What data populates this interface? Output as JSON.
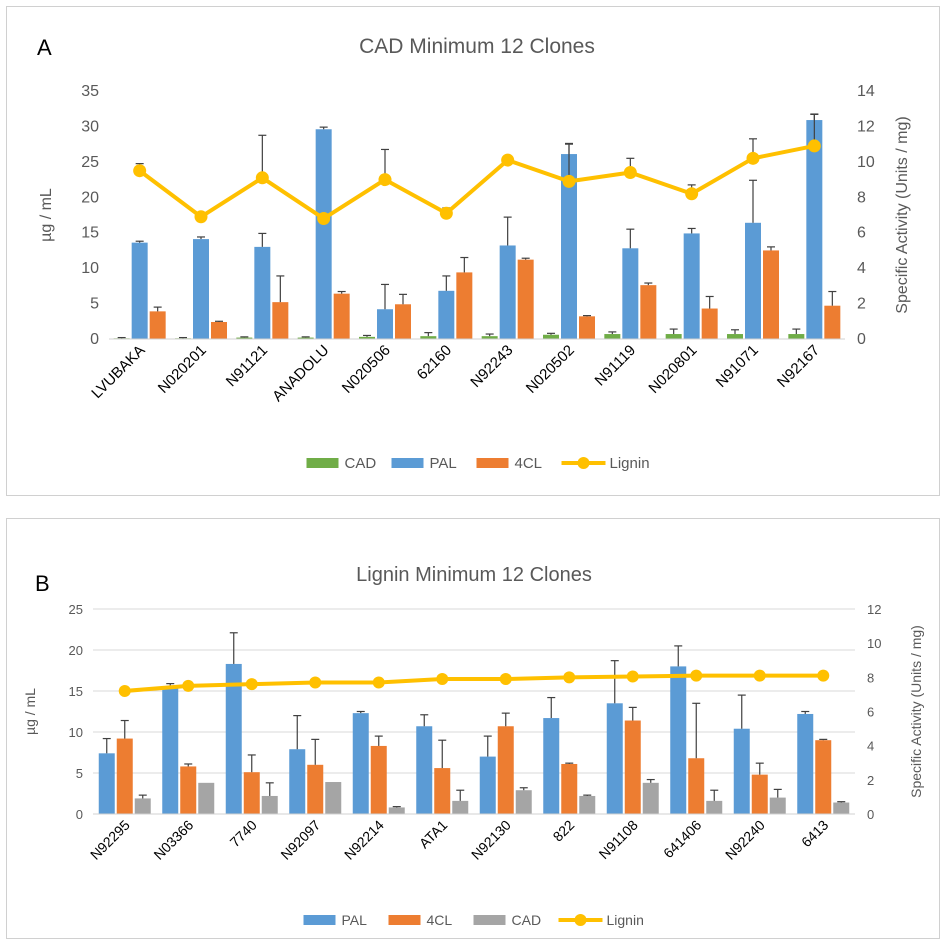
{
  "colors": {
    "CAD_A": "#70AD47",
    "PAL": "#5B9BD5",
    "4CL": "#ED7D31",
    "CAD_B": "#A5A5A5",
    "Lignin": "#FFC000",
    "axis_text": "#595959",
    "gridline": "#d9d9d9"
  },
  "chart_data": [
    {
      "type": "bar",
      "panel_label": "A",
      "title": "CAD Minimum 12 Clones",
      "ylabel": "µg / mL",
      "y2label": "Specific Activity (Units / mg)",
      "ylim": [
        0,
        35
      ],
      "y2lim": [
        0,
        14
      ],
      "yticks": [
        "0",
        "5",
        "10",
        "15",
        "20",
        "25",
        "30",
        "35"
      ],
      "y2ticks": [
        "0",
        "2",
        "4",
        "6",
        "8",
        "10",
        "12",
        "14"
      ],
      "grid": false,
      "legend_position": "bottom",
      "categories": [
        "LVUBAKA",
        "N020201",
        "N91121",
        "ANADOLU",
        "N020506",
        "62160",
        "N92243",
        "N020502",
        "N91119",
        "N020801",
        "N91071",
        "N92167"
      ],
      "series": [
        {
          "name": "CAD",
          "kind": "bar",
          "axis": "left",
          "color_key": "CAD_A",
          "values": [
            0.1,
            0.1,
            0.2,
            0.2,
            0.3,
            0.4,
            0.4,
            0.6,
            0.7,
            0.7,
            0.7,
            0.7
          ],
          "error": [
            0.1,
            0.1,
            0.1,
            0.1,
            0.2,
            0.5,
            0.3,
            0.2,
            0.3,
            0.7,
            0.6,
            0.7
          ]
        },
        {
          "name": "PAL",
          "kind": "bar",
          "axis": "left",
          "color_key": "PAL",
          "values": [
            13.6,
            14.1,
            13.0,
            29.6,
            4.2,
            6.8,
            13.2,
            26.1,
            12.8,
            14.9,
            16.4,
            30.9
          ],
          "error": [
            0.2,
            0.3,
            1.9,
            0.3,
            3.5,
            2.1,
            4.0,
            1.5,
            2.7,
            0.7,
            6.0,
            0.8
          ]
        },
        {
          "name": "4CL",
          "kind": "bar",
          "axis": "left",
          "color_key": "4CL",
          "values": [
            3.9,
            2.4,
            5.2,
            6.4,
            4.9,
            9.4,
            11.2,
            3.2,
            7.6,
            4.3,
            12.5,
            4.7
          ],
          "error": [
            0.6,
            0.1,
            3.7,
            0.3,
            1.4,
            2.1,
            0.2,
            0.1,
            0.3,
            1.7,
            0.5,
            2.0
          ]
        },
        {
          "name": "Lignin",
          "kind": "line",
          "axis": "right",
          "color_key": "Lignin",
          "values": [
            9.5,
            6.9,
            9.1,
            6.8,
            9.0,
            7.1,
            10.1,
            8.9,
            9.4,
            8.2,
            10.2,
            10.9
          ],
          "error": [
            0.4,
            0.0,
            2.4,
            0.0,
            1.7,
            0.3,
            0.0,
            2.1,
            0.8,
            0.5,
            1.1,
            1.8
          ]
        }
      ]
    },
    {
      "type": "bar",
      "panel_label": "B",
      "title": "Lignin Minimum 12 Clones",
      "ylabel": "µg / mL",
      "y2label": "Specific Activity (Units / mg)",
      "ylim": [
        0,
        25
      ],
      "y2lim": [
        0,
        12
      ],
      "yticks": [
        "0",
        "5",
        "10",
        "15",
        "20",
        "25"
      ],
      "y2ticks": [
        "0",
        "2",
        "4",
        "6",
        "8",
        "10",
        "12"
      ],
      "grid": true,
      "legend_position": "bottom",
      "categories": [
        "N92295",
        "N03366",
        "7740",
        "N92097",
        "N92214",
        "ATA1",
        "N92130",
        "822",
        "N91108",
        "641406",
        "N92240",
        "6413"
      ],
      "series": [
        {
          "name": "PAL",
          "kind": "bar",
          "axis": "left",
          "color_key": "PAL",
          "values": [
            7.4,
            15.6,
            18.3,
            7.9,
            12.3,
            10.7,
            7.0,
            11.7,
            13.5,
            18.0,
            10.4,
            12.2
          ],
          "error": [
            1.8,
            0.3,
            3.8,
            4.1,
            0.2,
            1.4,
            2.5,
            2.5,
            5.2,
            2.5,
            4.1,
            0.3
          ]
        },
        {
          "name": "4CL",
          "kind": "bar",
          "axis": "left",
          "color_key": "4CL",
          "values": [
            9.2,
            5.8,
            5.1,
            6.0,
            8.3,
            5.6,
            10.7,
            6.1,
            11.4,
            6.8,
            4.8,
            9.0
          ],
          "error": [
            2.2,
            0.3,
            2.1,
            3.1,
            1.2,
            3.4,
            1.6,
            0.1,
            1.6,
            6.7,
            1.4,
            0.1
          ]
        },
        {
          "name": "CAD",
          "kind": "bar",
          "axis": "left",
          "color_key": "CAD_B",
          "values": [
            1.9,
            3.8,
            2.2,
            3.9,
            0.8,
            1.6,
            2.9,
            2.2,
            3.8,
            1.6,
            2.0,
            1.4
          ],
          "error": [
            0.4,
            0.0,
            1.6,
            0.0,
            0.1,
            1.3,
            0.3,
            0.1,
            0.4,
            1.3,
            1.0,
            0.1
          ]
        },
        {
          "name": "Lignin",
          "kind": "line",
          "axis": "right",
          "color_key": "Lignin",
          "values": [
            7.2,
            7.5,
            7.6,
            7.7,
            7.7,
            7.9,
            7.9,
            8.0,
            8.05,
            8.1,
            8.1,
            8.1
          ],
          "error": [
            0,
            0,
            0,
            0,
            0,
            0,
            0,
            0,
            0,
            0,
            0,
            0
          ]
        }
      ]
    }
  ]
}
